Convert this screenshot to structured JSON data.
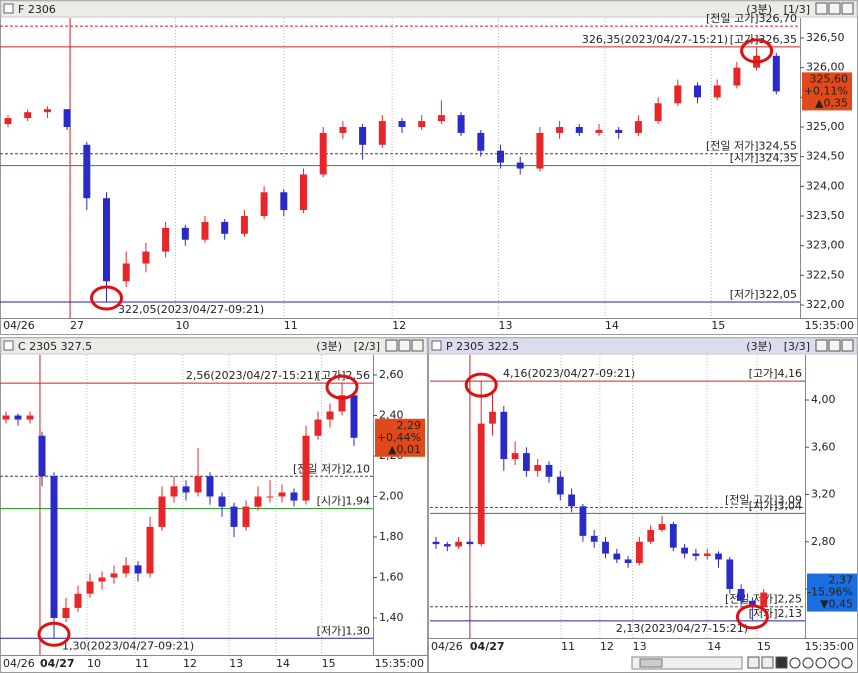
{
  "panels": [
    {
      "title": "F 2306",
      "interval": "(3분)",
      "page": "[1/3]",
      "time_label": "15:35:00",
      "yticks": [
        {
          "value": 326.5,
          "label": "326,50"
        },
        {
          "value": 326.0,
          "label": "326,00"
        },
        {
          "value": 325.5,
          "label": "325,50"
        },
        {
          "value": 325.0,
          "label": "325,00"
        },
        {
          "value": 324.5,
          "label": "324,50"
        },
        {
          "value": 324.0,
          "label": "324,00"
        },
        {
          "value": 323.5,
          "label": "323,50"
        },
        {
          "value": 323.0,
          "label": "323,00"
        },
        {
          "value": 322.5,
          "label": "322,50"
        },
        {
          "value": 322.0,
          "label": "322,00"
        }
      ],
      "xticks": [
        {
          "value": -0.25,
          "label": "04/26"
        },
        {
          "value": 3.15,
          "label": "27"
        },
        {
          "value": 8.5,
          "label": "10"
        },
        {
          "value": 14,
          "label": "11"
        },
        {
          "value": 19.5,
          "label": "12"
        },
        {
          "value": 24.9,
          "label": "13"
        },
        {
          "value": 30.3,
          "label": "14"
        },
        {
          "value": 35.7,
          "label": "15"
        }
      ],
      "ref_lines": [
        {
          "value": 326.7,
          "label": "[전일 고가]326,70",
          "style": "dashed",
          "color": "#d02020"
        },
        {
          "value": 326.35,
          "label": "[고가]326,35",
          "style": "solid",
          "color": "#d02020"
        },
        {
          "value": 324.55,
          "label": "[전일 저가]324,55",
          "style": "dashed",
          "color": "#404040"
        },
        {
          "value": 324.35,
          "label": "[시가]324,35",
          "style": "solid",
          "color": "#209020"
        },
        {
          "value": 322.05,
          "label": "[저가]322,05",
          "style": "solid",
          "color": "#2020a0"
        }
      ],
      "annotations": [
        {
          "value": 326.35,
          "label": "326,35(2023/04/27-15:21)"
        },
        {
          "value": 322.05,
          "label": "322,05(2023/04/27-09:21)"
        }
      ],
      "price_box": {
        "price": "325,60",
        "change_pct": "+0,11%",
        "change": "▲0,35",
        "color": "#e04a1a"
      },
      "candles": [
        [
          325.05,
          325.2,
          325.0,
          325.15
        ],
        [
          325.15,
          325.3,
          325.1,
          325.25
        ],
        [
          325.25,
          325.35,
          325.15,
          325.3
        ],
        [
          325.3,
          325.3,
          324.95,
          325.0
        ],
        [
          324.7,
          324.75,
          323.6,
          323.8
        ],
        [
          323.8,
          323.9,
          322.05,
          322.4
        ],
        [
          322.4,
          322.9,
          322.3,
          322.7
        ],
        [
          322.7,
          323.05,
          322.55,
          322.9
        ],
        [
          322.9,
          323.4,
          322.8,
          323.3
        ],
        [
          323.3,
          323.35,
          323.0,
          323.1
        ],
        [
          323.1,
          323.5,
          323.05,
          323.4
        ],
        [
          323.4,
          323.45,
          323.1,
          323.2
        ],
        [
          323.2,
          323.6,
          323.15,
          323.5
        ],
        [
          323.5,
          324.0,
          323.45,
          323.9
        ],
        [
          323.9,
          323.95,
          323.5,
          323.6
        ],
        [
          323.6,
          324.3,
          323.55,
          324.2
        ],
        [
          324.2,
          325.0,
          324.15,
          324.9
        ],
        [
          324.9,
          325.1,
          324.8,
          325.0
        ],
        [
          325.0,
          325.05,
          324.45,
          324.7
        ],
        [
          324.7,
          325.2,
          324.65,
          325.1
        ],
        [
          325.1,
          325.15,
          324.9,
          325.0
        ],
        [
          325.0,
          325.2,
          324.95,
          325.1
        ],
        [
          325.1,
          325.45,
          325.05,
          325.2
        ],
        [
          325.2,
          325.25,
          324.85,
          324.9
        ],
        [
          324.9,
          324.95,
          324.5,
          324.6
        ],
        [
          324.6,
          324.7,
          324.3,
          324.4
        ],
        [
          324.4,
          324.5,
          324.2,
          324.3
        ],
        [
          324.3,
          325.0,
          324.25,
          324.9
        ],
        [
          324.9,
          325.1,
          324.8,
          325.0
        ],
        [
          325.0,
          325.05,
          324.85,
          324.9
        ],
        [
          324.9,
          325.05,
          324.85,
          324.95
        ],
        [
          324.95,
          325.0,
          324.8,
          324.9
        ],
        [
          324.9,
          325.2,
          324.85,
          325.1
        ],
        [
          325.1,
          325.5,
          325.05,
          325.4
        ],
        [
          325.4,
          325.8,
          325.35,
          325.7
        ],
        [
          325.7,
          325.75,
          325.4,
          325.5
        ],
        [
          325.5,
          325.8,
          325.45,
          325.7
        ],
        [
          325.7,
          326.1,
          325.65,
          326.0
        ],
        [
          326.0,
          326.35,
          325.95,
          326.2
        ],
        [
          326.2,
          326.25,
          325.55,
          325.6
        ]
      ]
    },
    {
      "title": "C 2305 327.5",
      "interval": "(3분)",
      "page": "[2/3]",
      "time_label": "15:35:00",
      "yticks": [
        {
          "value": 2.6,
          "label": "2,60"
        },
        {
          "value": 2.4,
          "label": "2,40"
        },
        {
          "value": 2.2,
          "label": "2,20"
        },
        {
          "value": 2.0,
          "label": "2,00"
        },
        {
          "value": 1.8,
          "label": "1,80"
        },
        {
          "value": 1.6,
          "label": "1,60"
        },
        {
          "value": 1.4,
          "label": "1,40"
        }
      ],
      "xticks": [
        {
          "value": -0.25,
          "label": "04/26"
        },
        {
          "value": 2.83,
          "label": "04/27"
        },
        {
          "value": 6.75,
          "label": "10"
        },
        {
          "value": 10.75,
          "label": "11"
        },
        {
          "value": 14.75,
          "label": "12"
        },
        {
          "value": 18.6,
          "label": "13"
        },
        {
          "value": 22.5,
          "label": "14"
        },
        {
          "value": 26.3,
          "label": "15"
        }
      ],
      "ref_lines": [
        {
          "value": 2.56,
          "label": "[고가]2,56",
          "style": "solid",
          "color": "#d02020"
        },
        {
          "value": 2.1,
          "label": "[전일 저가]2,10",
          "style": "dashed",
          "color": "#404040"
        },
        {
          "value": 1.94,
          "label": "[시가]1,94",
          "style": "solid",
          "color": "#209020"
        },
        {
          "value": 1.3,
          "label": "[저가]1,30",
          "style": "solid",
          "color": "#2020a0"
        }
      ],
      "annotations": [
        {
          "value": 2.56,
          "label": "2,56(2023/04/27-15:21)"
        },
        {
          "value": 1.3,
          "label": "1,30(2023/04/27-09:21)"
        }
      ],
      "price_box": {
        "price": "2,29",
        "change_pct": "+0,44%",
        "change": "▲0,01",
        "color": "#e04a1a"
      },
      "candles": [
        [
          2.38,
          2.42,
          2.36,
          2.4
        ],
        [
          2.4,
          2.41,
          2.35,
          2.38
        ],
        [
          2.38,
          2.42,
          2.36,
          2.4
        ],
        [
          2.3,
          2.32,
          2.05,
          2.1
        ],
        [
          2.1,
          2.12,
          1.3,
          1.4
        ],
        [
          1.4,
          1.5,
          1.38,
          1.45
        ],
        [
          1.45,
          1.56,
          1.43,
          1.52
        ],
        [
          1.52,
          1.62,
          1.5,
          1.58
        ],
        [
          1.58,
          1.63,
          1.54,
          1.6
        ],
        [
          1.6,
          1.66,
          1.57,
          1.62
        ],
        [
          1.62,
          1.7,
          1.6,
          1.66
        ],
        [
          1.66,
          1.68,
          1.58,
          1.62
        ],
        [
          1.62,
          1.9,
          1.6,
          1.85
        ],
        [
          1.85,
          2.05,
          1.83,
          2.0
        ],
        [
          2.0,
          2.1,
          1.97,
          2.05
        ],
        [
          2.05,
          2.08,
          1.98,
          2.02
        ],
        [
          2.02,
          2.24,
          2.0,
          2.1
        ],
        [
          2.1,
          2.12,
          1.96,
          2.0
        ],
        [
          2.0,
          2.02,
          1.9,
          1.95
        ],
        [
          1.95,
          1.97,
          1.8,
          1.85
        ],
        [
          1.85,
          1.98,
          1.83,
          1.95
        ],
        [
          1.95,
          2.05,
          1.93,
          2.0
        ],
        [
          2.0,
          2.08,
          1.97,
          2.0
        ],
        [
          2.0,
          2.06,
          1.97,
          2.02
        ],
        [
          2.02,
          2.04,
          1.95,
          1.98
        ],
        [
          1.98,
          2.35,
          1.96,
          2.3
        ],
        [
          2.3,
          2.42,
          2.28,
          2.38
        ],
        [
          2.38,
          2.46,
          2.34,
          2.42
        ],
        [
          2.42,
          2.56,
          2.4,
          2.5
        ],
        [
          2.5,
          2.52,
          2.25,
          2.29
        ]
      ]
    },
    {
      "title": "P 2305 322.5",
      "interval": "(3분)",
      "page": "[3/3]",
      "time_label": "15:35:00",
      "yticks": [
        {
          "value": 4.0,
          "label": "4,00"
        },
        {
          "value": 3.6,
          "label": "3,60"
        },
        {
          "value": 3.2,
          "label": "3,20"
        },
        {
          "value": 2.8,
          "label": "2,80"
        },
        {
          "value": 2.4,
          "label": "2,40"
        }
      ],
      "xticks": [
        {
          "value": -0.44,
          "label": "04/26"
        },
        {
          "value": 3.0,
          "label": "04/27"
        },
        {
          "value": 11.06,
          "label": "11"
        },
        {
          "value": 14.5,
          "label": "12"
        },
        {
          "value": 17.4,
          "label": "13"
        },
        {
          "value": 24,
          "label": "14"
        },
        {
          "value": 28.4,
          "label": "15"
        }
      ],
      "ref_lines": [
        {
          "value": 4.16,
          "label": "[고가]4,16",
          "style": "solid",
          "color": "#d02020"
        },
        {
          "value": 3.09,
          "label": "[전일 고가]3,09",
          "style": "dashed",
          "color": "#d02020"
        },
        {
          "value": 3.04,
          "label": "[시가]3,04",
          "style": "solid",
          "color": "#209020"
        },
        {
          "value": 2.25,
          "label": "[전일 저가]2,25",
          "style": "dashed",
          "color": "#404040"
        },
        {
          "value": 2.13,
          "label": "[저가]2,13",
          "style": "solid",
          "color": "#2020a0"
        }
      ],
      "annotations": [
        {
          "value": 4.16,
          "label": "4,16(2023/04/27-09:21)"
        },
        {
          "value": 2.13,
          "label": "2,13(2023/04/27-15:21)"
        }
      ],
      "price_box": {
        "price": "2,37",
        "change_pct": "-15,96%",
        "change": "▼0,45",
        "color": "#1a6ee0"
      },
      "candles": [
        [
          2.8,
          2.84,
          2.74,
          2.78
        ],
        [
          2.78,
          2.8,
          2.72,
          2.76
        ],
        [
          2.76,
          2.84,
          2.74,
          2.8
        ],
        [
          2.8,
          2.82,
          2.76,
          2.78
        ],
        [
          2.78,
          4.16,
          2.76,
          3.8
        ],
        [
          3.8,
          4.05,
          3.7,
          3.9
        ],
        [
          3.9,
          3.95,
          3.4,
          3.5
        ],
        [
          3.5,
          3.65,
          3.45,
          3.55
        ],
        [
          3.55,
          3.6,
          3.35,
          3.4
        ],
        [
          3.4,
          3.5,
          3.35,
          3.45
        ],
        [
          3.45,
          3.48,
          3.3,
          3.35
        ],
        [
          3.35,
          3.4,
          3.15,
          3.2
        ],
        [
          3.2,
          3.25,
          3.05,
          3.1
        ],
        [
          3.1,
          3.12,
          2.8,
          2.85
        ],
        [
          2.85,
          2.9,
          2.75,
          2.8
        ],
        [
          2.8,
          2.84,
          2.66,
          2.7
        ],
        [
          2.7,
          2.74,
          2.62,
          2.65
        ],
        [
          2.65,
          2.68,
          2.58,
          2.62
        ],
        [
          2.62,
          2.84,
          2.6,
          2.8
        ],
        [
          2.8,
          2.94,
          2.78,
          2.9
        ],
        [
          2.9,
          3.02,
          2.88,
          2.95
        ],
        [
          2.95,
          2.97,
          2.72,
          2.75
        ],
        [
          2.75,
          2.78,
          2.66,
          2.7
        ],
        [
          2.7,
          2.74,
          2.64,
          2.68
        ],
        [
          2.68,
          2.74,
          2.65,
          2.7
        ],
        [
          2.7,
          2.72,
          2.58,
          2.65
        ],
        [
          2.65,
          2.67,
          2.36,
          2.4
        ],
        [
          2.4,
          2.44,
          2.26,
          2.3
        ],
        [
          2.3,
          2.33,
          2.13,
          2.25
        ],
        [
          2.25,
          2.4,
          2.22,
          2.37
        ]
      ]
    }
  ]
}
